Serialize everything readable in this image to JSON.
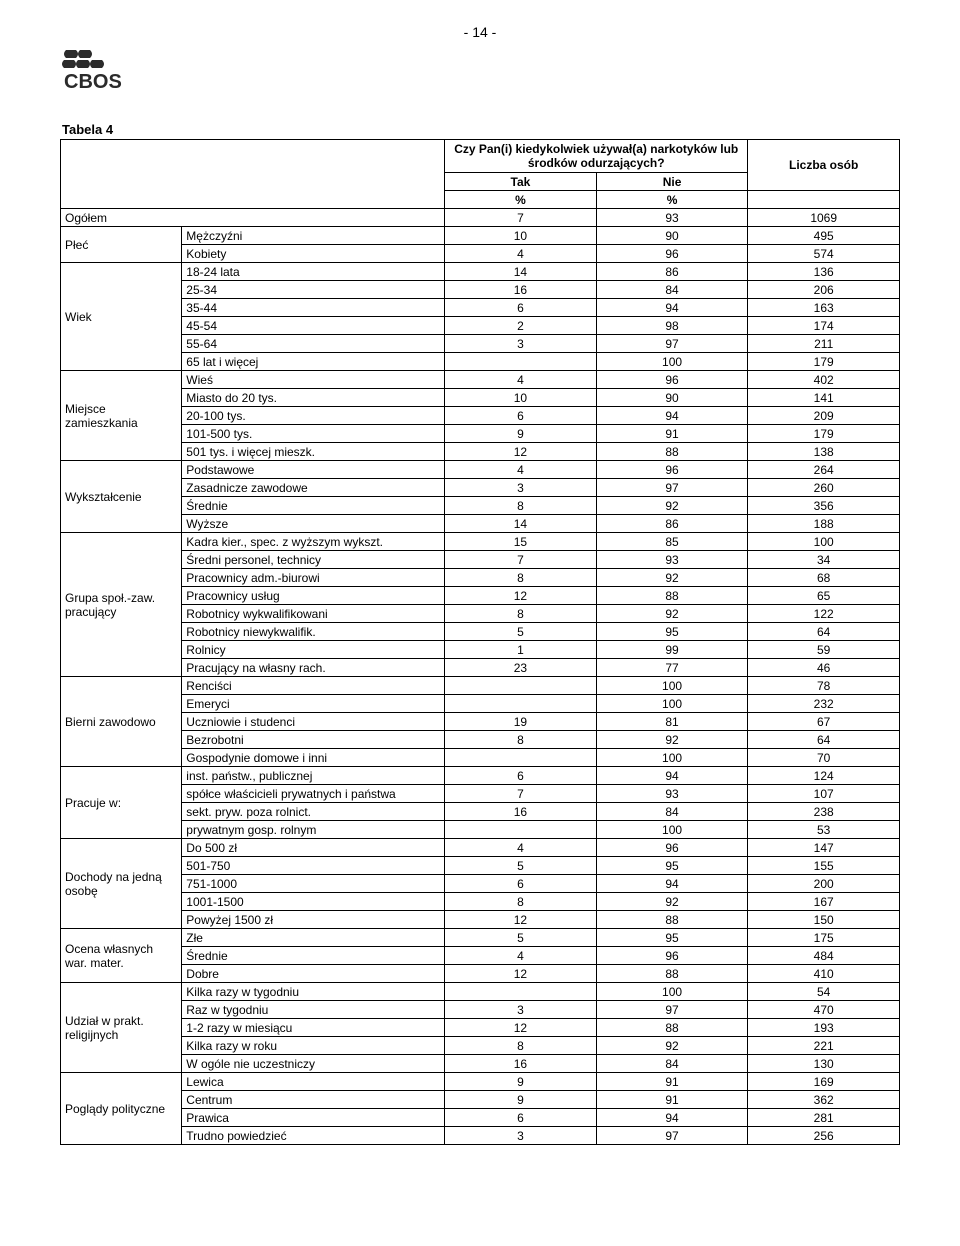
{
  "page_number": "- 14 -",
  "logo_text": "CBOS",
  "table_title": "Tabela 4",
  "header": {
    "question": "Czy Pan(i) kiedykolwiek używał(a) narkotyków lub środków odurzających?",
    "col_yes": "Tak",
    "col_no": "Nie",
    "count": "Liczba osób",
    "pct": "%"
  },
  "overall": {
    "label": "Ogółem",
    "tak": "7",
    "nie": "93",
    "count": "1069"
  },
  "groups": [
    {
      "name": "Płeć",
      "rows": [
        {
          "label": "Mężczyźni",
          "tak": "10",
          "nie": "90",
          "count": "495"
        },
        {
          "label": "Kobiety",
          "tak": "4",
          "nie": "96",
          "count": "574"
        }
      ]
    },
    {
      "name": "Wiek",
      "rows": [
        {
          "label": "18-24 lata",
          "tak": "14",
          "nie": "86",
          "count": "136"
        },
        {
          "label": "25-34",
          "tak": "16",
          "nie": "84",
          "count": "206"
        },
        {
          "label": "35-44",
          "tak": "6",
          "nie": "94",
          "count": "163"
        },
        {
          "label": "45-54",
          "tak": "2",
          "nie": "98",
          "count": "174"
        },
        {
          "label": "55-64",
          "tak": "3",
          "nie": "97",
          "count": "211"
        },
        {
          "label": "65 lat i więcej",
          "tak": "",
          "nie": "100",
          "count": "179"
        }
      ]
    },
    {
      "name": "Miejsce zamieszkania",
      "rows": [
        {
          "label": "Wieś",
          "tak": "4",
          "nie": "96",
          "count": "402"
        },
        {
          "label": "Miasto do 20 tys.",
          "tak": "10",
          "nie": "90",
          "count": "141"
        },
        {
          "label": "20-100 tys.",
          "tak": "6",
          "nie": "94",
          "count": "209"
        },
        {
          "label": "101-500 tys.",
          "tak": "9",
          "nie": "91",
          "count": "179"
        },
        {
          "label": "501 tys. i więcej mieszk.",
          "tak": "12",
          "nie": "88",
          "count": "138"
        }
      ]
    },
    {
      "name": "Wykształcenie",
      "rows": [
        {
          "label": "Podstawowe",
          "tak": "4",
          "nie": "96",
          "count": "264"
        },
        {
          "label": "Zasadnicze zawodowe",
          "tak": "3",
          "nie": "97",
          "count": "260"
        },
        {
          "label": "Średnie",
          "tak": "8",
          "nie": "92",
          "count": "356"
        },
        {
          "label": "Wyższe",
          "tak": "14",
          "nie": "86",
          "count": "188"
        }
      ]
    },
    {
      "name": "Grupa społ.-zaw. pracujący",
      "rows": [
        {
          "label": "Kadra kier., spec. z wyższym wykszt.",
          "tak": "15",
          "nie": "85",
          "count": "100"
        },
        {
          "label": "Średni personel, technicy",
          "tak": "7",
          "nie": "93",
          "count": "34"
        },
        {
          "label": "Pracownicy adm.-biurowi",
          "tak": "8",
          "nie": "92",
          "count": "68"
        },
        {
          "label": "Pracownicy usług",
          "tak": "12",
          "nie": "88",
          "count": "65"
        },
        {
          "label": "Robotnicy wykwalifikowani",
          "tak": "8",
          "nie": "92",
          "count": "122"
        },
        {
          "label": "Robotnicy niewykwalifik.",
          "tak": "5",
          "nie": "95",
          "count": "64"
        },
        {
          "label": "Rolnicy",
          "tak": "1",
          "nie": "99",
          "count": "59"
        },
        {
          "label": "Pracujący na własny rach.",
          "tak": "23",
          "nie": "77",
          "count": "46"
        }
      ]
    },
    {
      "name": "Bierni zawodowo",
      "rows": [
        {
          "label": "Renciści",
          "tak": "",
          "nie": "100",
          "count": "78"
        },
        {
          "label": "Emeryci",
          "tak": "",
          "nie": "100",
          "count": "232"
        },
        {
          "label": "Uczniowie i studenci",
          "tak": "19",
          "nie": "81",
          "count": "67"
        },
        {
          "label": "Bezrobotni",
          "tak": "8",
          "nie": "92",
          "count": "64"
        },
        {
          "label": "Gospodynie domowe i inni",
          "tak": "",
          "nie": "100",
          "count": "70"
        }
      ]
    },
    {
      "name": "Pracuje w:",
      "rows": [
        {
          "label": "inst. państw., publicznej",
          "tak": "6",
          "nie": "94",
          "count": "124"
        },
        {
          "label": "spółce właścicieli prywatnych i państwa",
          "tak": "7",
          "nie": "93",
          "count": "107"
        },
        {
          "label": "sekt. pryw. poza rolnict.",
          "tak": "16",
          "nie": "84",
          "count": "238"
        },
        {
          "label": "prywatnym gosp. rolnym",
          "tak": "",
          "nie": "100",
          "count": "53"
        }
      ]
    },
    {
      "name": "Dochody na jedną osobę",
      "rows": [
        {
          "label": "Do 500 zł",
          "tak": "4",
          "nie": "96",
          "count": "147"
        },
        {
          "label": "501-750",
          "tak": "5",
          "nie": "95",
          "count": "155"
        },
        {
          "label": "751-1000",
          "tak": "6",
          "nie": "94",
          "count": "200"
        },
        {
          "label": "1001-1500",
          "tak": "8",
          "nie": "92",
          "count": "167"
        },
        {
          "label": "Powyżej 1500 zł",
          "tak": "12",
          "nie": "88",
          "count": "150"
        }
      ]
    },
    {
      "name": "Ocena własnych war. mater.",
      "rows": [
        {
          "label": "Złe",
          "tak": "5",
          "nie": "95",
          "count": "175"
        },
        {
          "label": "Średnie",
          "tak": "4",
          "nie": "96",
          "count": "484"
        },
        {
          "label": "Dobre",
          "tak": "12",
          "nie": "88",
          "count": "410"
        }
      ]
    },
    {
      "name": "Udział w prakt. religijnych",
      "rows": [
        {
          "label": "Kilka razy w tygodniu",
          "tak": "",
          "nie": "100",
          "count": "54"
        },
        {
          "label": "Raz w tygodniu",
          "tak": "3",
          "nie": "97",
          "count": "470"
        },
        {
          "label": "1-2 razy w miesiącu",
          "tak": "12",
          "nie": "88",
          "count": "193"
        },
        {
          "label": "Kilka razy w roku",
          "tak": "8",
          "nie": "92",
          "count": "221"
        },
        {
          "label": "W ogóle nie uczestniczy",
          "tak": "16",
          "nie": "84",
          "count": "130"
        }
      ]
    },
    {
      "name": "Poglądy polityczne",
      "rows": [
        {
          "label": "Lewica",
          "tak": "9",
          "nie": "91",
          "count": "169"
        },
        {
          "label": "Centrum",
          "tak": "9",
          "nie": "91",
          "count": "362"
        },
        {
          "label": "Prawica",
          "tak": "6",
          "nie": "94",
          "count": "281"
        },
        {
          "label": "Trudno powiedzieć",
          "tak": "3",
          "nie": "97",
          "count": "256"
        }
      ]
    }
  ],
  "colors": {
    "text": "#000000",
    "border": "#000000",
    "background": "#ffffff",
    "logo_dark": "#2b2b2b"
  }
}
